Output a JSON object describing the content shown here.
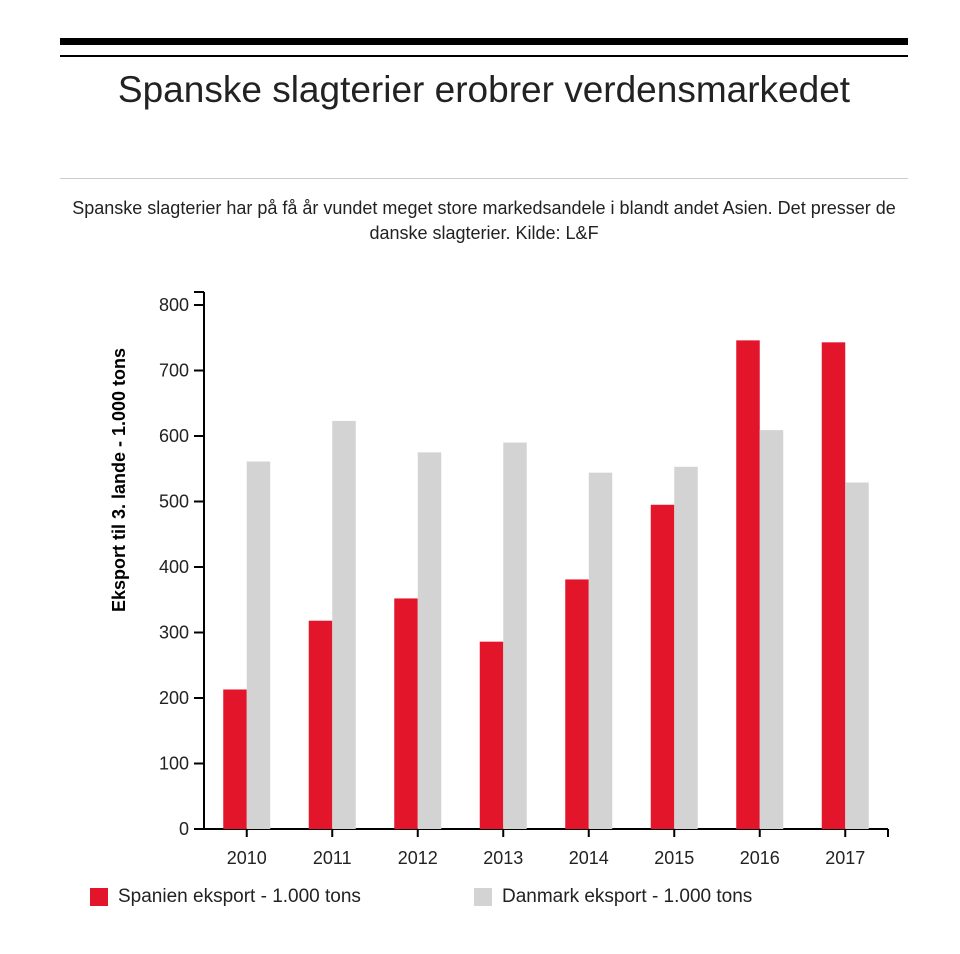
{
  "title": "Spanske slagterier erobrer verdensmarkedet",
  "subtitle": "Spanske slagterier har på få år vundet meget store markedsandele i blandt andet Asien. Det presser de danske slagterier. Kilde: L&F",
  "chart_data": {
    "type": "bar",
    "title": "Spanske slagterier erobrer verdensmarkedet",
    "xlabel": "",
    "ylabel": "Eksport til 3. lande - 1.000 tons",
    "ylim": [
      0,
      800
    ],
    "yticks": [
      0,
      100,
      200,
      300,
      400,
      500,
      600,
      700,
      800
    ],
    "categories": [
      "2010",
      "2011",
      "2012",
      "2013",
      "2014",
      "2015",
      "2016",
      "2017"
    ],
    "series": [
      {
        "name": "Spanien eksport - 1.000 tons",
        "color": "#e2152b",
        "values": [
          213,
          318,
          352,
          286,
          381,
          495,
          746,
          743
        ]
      },
      {
        "name": "Danmark eksport - 1.000 tons",
        "color": "#d3d3d3",
        "values": [
          561,
          623,
          575,
          590,
          544,
          553,
          609,
          529
        ]
      }
    ],
    "grid": false,
    "legend": "bottom-left"
  }
}
